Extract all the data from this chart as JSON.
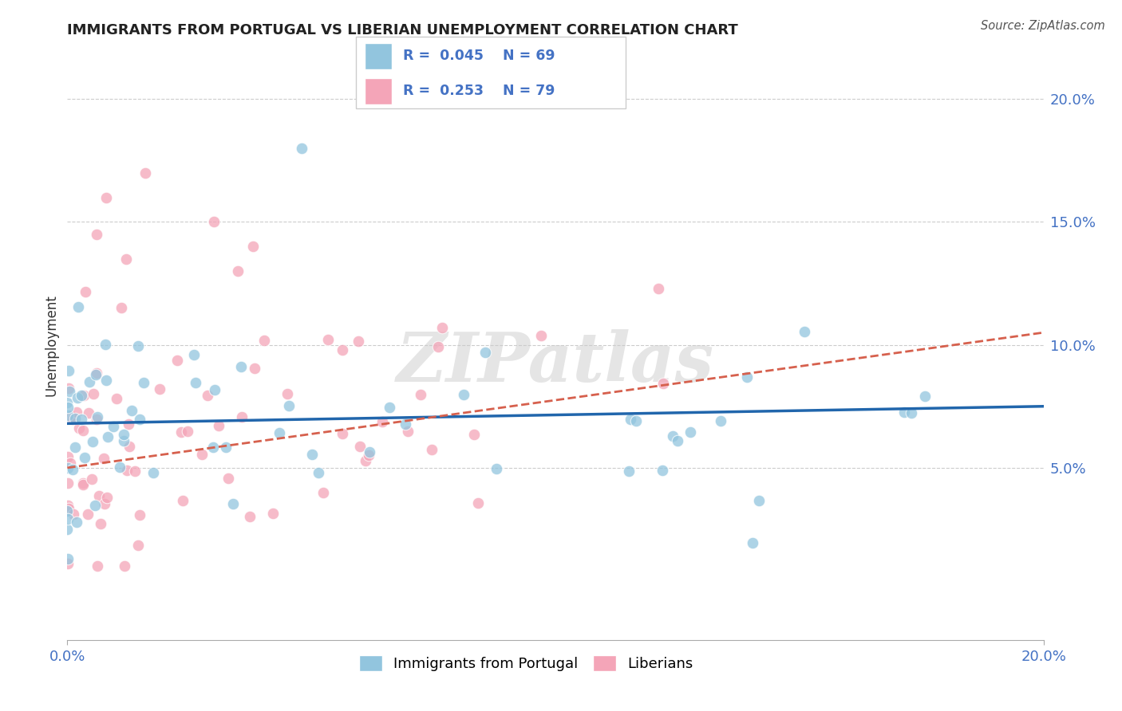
{
  "title": "IMMIGRANTS FROM PORTUGAL VS LIBERIAN UNEMPLOYMENT CORRELATION CHART",
  "source": "Source: ZipAtlas.com",
  "ylabel": "Unemployment",
  "legend_label1": "Immigrants from Portugal",
  "legend_label2": "Liberians",
  "r1": 0.045,
  "n1": 69,
  "r2": 0.253,
  "n2": 79,
  "color_blue": "#92C5DE",
  "color_pink": "#F4A5B8",
  "line_color_blue": "#2166AC",
  "line_color_pink": "#D6604D",
  "watermark_text": "ZIPatlas",
  "xlim": [
    0.0,
    0.2
  ],
  "ylim": [
    -0.02,
    0.22
  ],
  "ytick_vals": [
    0.05,
    0.1,
    0.15,
    0.2
  ],
  "ytick_labels": [
    "5.0%",
    "10.0%",
    "15.0%",
    "20.0%"
  ],
  "blue_line_start_y": 0.068,
  "blue_line_end_y": 0.075,
  "pink_line_start_y": 0.05,
  "pink_line_end_y": 0.105,
  "background_color": "#ffffff",
  "grid_color": "#cccccc"
}
